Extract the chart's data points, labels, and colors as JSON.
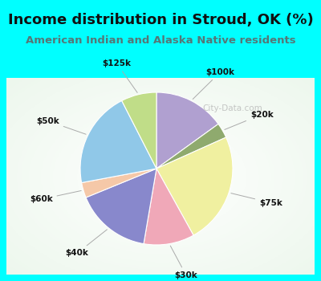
{
  "title": "Income distribution in Stroud, OK (%)",
  "subtitle": "American Indian and Alaska Native residents",
  "watermark": "City-Data.com",
  "labels": [
    "$100k",
    "$20k",
    "$75k",
    "$30k",
    "$40k",
    "$60k",
    "$50k",
    "$125k"
  ],
  "sizes": [
    14,
    3,
    22,
    10,
    15,
    3,
    19,
    7
  ],
  "colors": [
    "#b0a0d0",
    "#8faa6e",
    "#f0f0a0",
    "#f0a8b8",
    "#8888cc",
    "#f5c8a8",
    "#90c8e8",
    "#c0dd88"
  ],
  "bg_cyan": "#00ffff",
  "bg_chart": "#dff0e8",
  "title_color": "#111111",
  "subtitle_color": "#557777",
  "startangle": 90,
  "label_r": 1.32,
  "pie_r": 0.78
}
